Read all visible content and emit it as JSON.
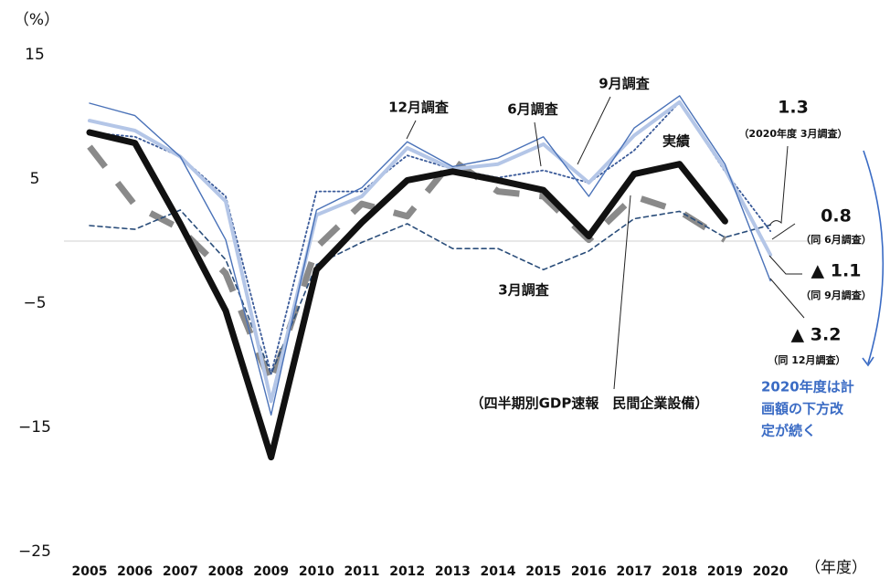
{
  "chart_data": {
    "type": "line",
    "y_label": "（%）",
    "x_label": "（年度）",
    "categories": [
      "2005",
      "2006",
      "2007",
      "2008",
      "2009",
      "2010",
      "2011",
      "2012",
      "2013",
      "2014",
      "2015",
      "2016",
      "2017",
      "2018",
      "2019",
      "2020"
    ],
    "ylim": [
      -25,
      15
    ],
    "yticks": [
      {
        "value": -25,
        "label": "−25"
      },
      {
        "value": -15,
        "label": "−15"
      },
      {
        "value": -5,
        "label": "−5"
      },
      5,
      15
    ],
    "series": [
      {
        "name": "実績",
        "color": "#111111",
        "values": [
          8.75,
          7.9,
          1.4,
          -5.6,
          -17.4,
          -2.3,
          1.5,
          4.9,
          5.6,
          4.9,
          4.1,
          0.4,
          5.4,
          6.2,
          1.6,
          null
        ]
      },
      {
        "name": "3月調査",
        "color": "#2a4d7a",
        "values": [
          1.25,
          0.95,
          2.5,
          -1.5,
          -10.7,
          -1.9,
          -0.1,
          1.4,
          -0.6,
          -0.6,
          -2.3,
          -0.8,
          1.8,
          2.4,
          0.3,
          1.3
        ]
      },
      {
        "name": "6月調査",
        "color": "#3a5a99",
        "values": [
          8.75,
          8.4,
          6.8,
          3.6,
          -10.7,
          4.0,
          4.0,
          6.9,
          5.8,
          5.1,
          5.7,
          4.7,
          7.3,
          11.2,
          5.6,
          0.8
        ]
      },
      {
        "name": "9月調査",
        "color": "#b4c6e7",
        "values": [
          9.7,
          8.9,
          6.8,
          3.2,
          -12.9,
          2.1,
          3.6,
          7.5,
          5.8,
          6.2,
          7.8,
          4.7,
          8.5,
          11.2,
          5.8,
          -1.1
        ]
      },
      {
        "name": "12月調査",
        "color": "#4a72b8",
        "values": [
          11.1,
          10.1,
          6.8,
          0.1,
          -14.0,
          2.5,
          4.3,
          8.0,
          6.0,
          6.7,
          8.4,
          3.6,
          9.1,
          11.7,
          6.2,
          -3.2
        ]
      },
      {
        "name": "（四半期別GDP速報　民間企業設備）",
        "color": "#8a8a8a",
        "values": [
          7.6,
          2.9,
          1.0,
          -2.6,
          -11.5,
          -0.5,
          3.0,
          2.0,
          6.5,
          4.0,
          3.6,
          0.1,
          3.6,
          2.4,
          0.1,
          null
        ]
      }
    ],
    "annotations": [
      {
        "value": "1.3",
        "note": "（2020年度 3月調査）"
      },
      {
        "value": "0.8",
        "note": "（同 6月調査）"
      },
      {
        "value": "▲ 1.1",
        "note": "（同 9月調査）"
      },
      {
        "value": "▲ 3.2",
        "note": "（同 12月調査）"
      }
    ],
    "note_lines": [
      "2020年度は計",
      "画額の下方改",
      "定が続く"
    ]
  }
}
